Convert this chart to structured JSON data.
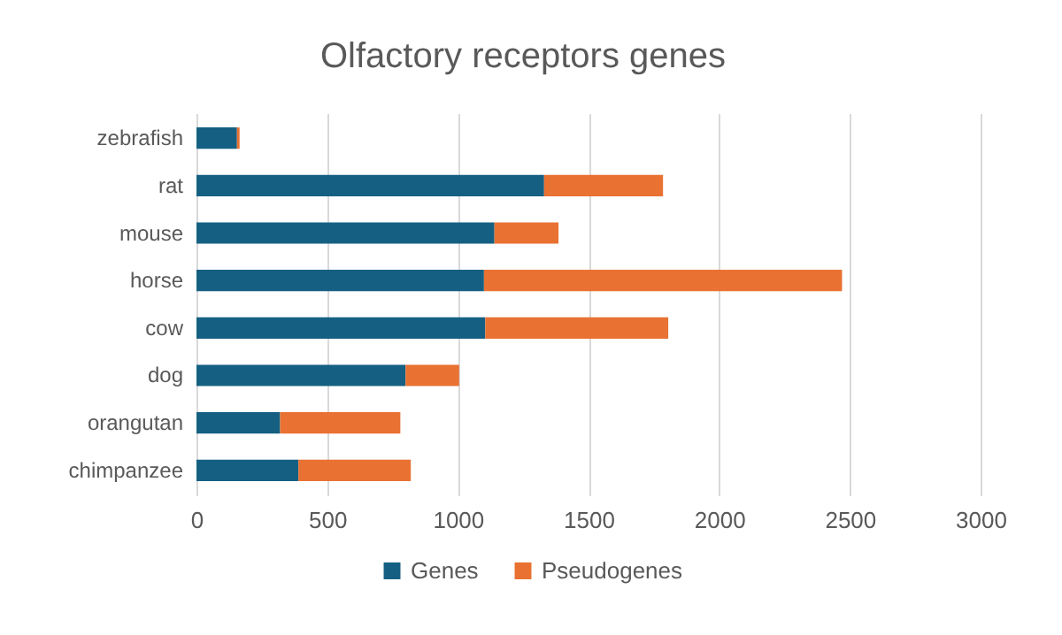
{
  "chart_data": {
    "type": "bar",
    "title": "Olfactory receptors genes",
    "orientation": "horizontal",
    "stacked": true,
    "categories": [
      "zebrafish",
      "rat",
      "mouse",
      "horse",
      "cow",
      "dog",
      "orangutan",
      "chimpanzee"
    ],
    "series": [
      {
        "name": "Genes",
        "color": "#156082",
        "values": [
          155,
          1330,
          1140,
          1100,
          1105,
          800,
          320,
          390
        ]
      },
      {
        "name": "Pseudogenes",
        "color": "#e97132",
        "values": [
          10,
          455,
          245,
          1370,
          700,
          205,
          460,
          430
        ]
      }
    ],
    "xlim": [
      0,
      3000
    ],
    "xticks": [
      0,
      500,
      1000,
      1500,
      2000,
      2500,
      3000
    ],
    "grid": "x",
    "legend": "bottom"
  }
}
